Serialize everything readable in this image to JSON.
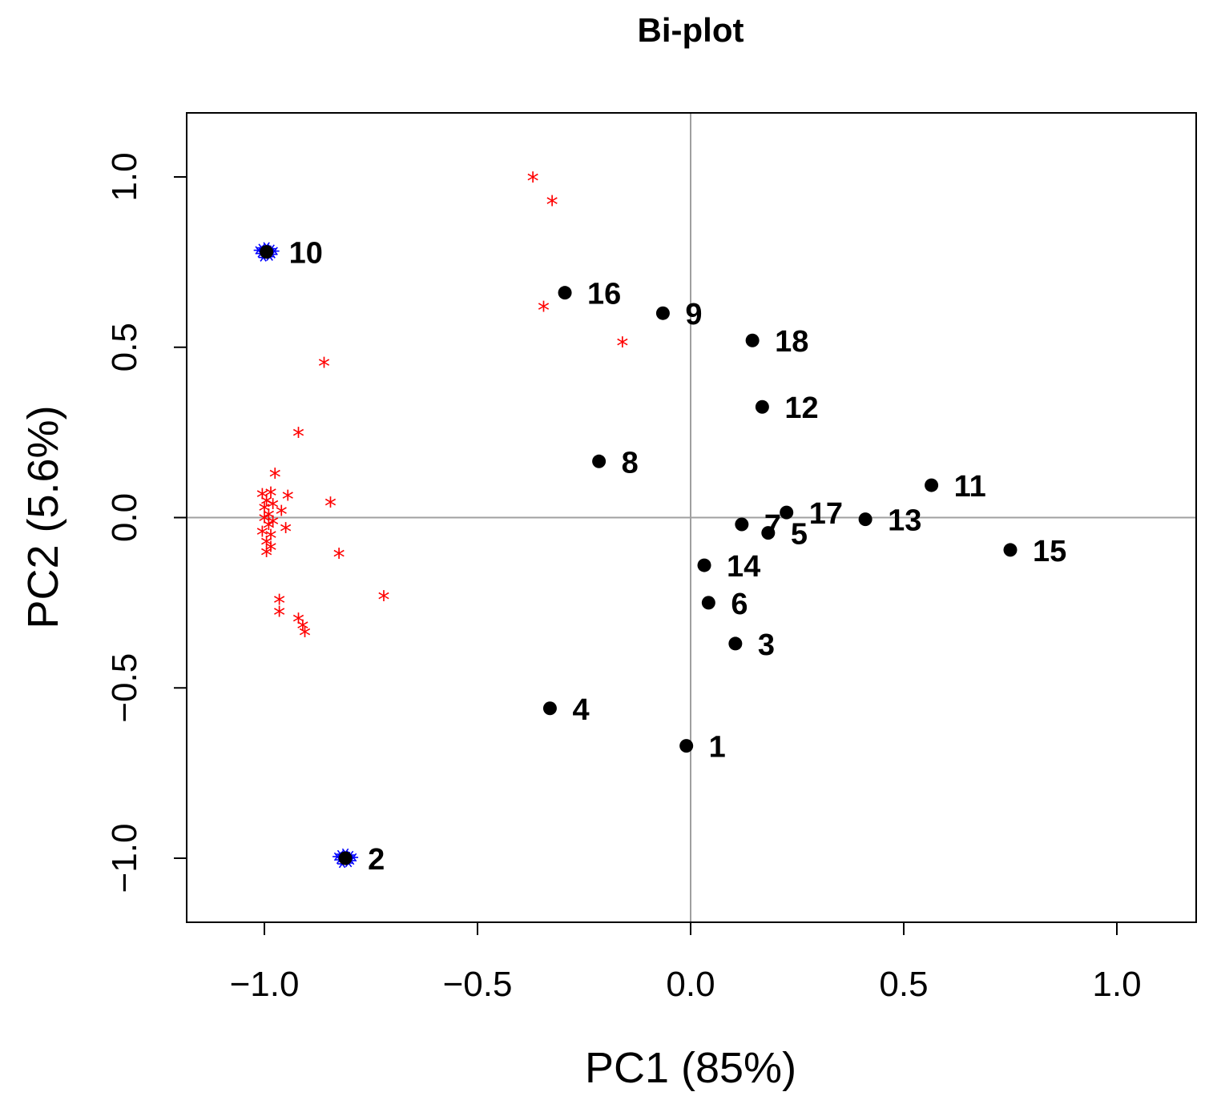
{
  "chart_data": {
    "type": "scatter",
    "title": "Bi-plot",
    "xlabel": "PC1 (85%)",
    "ylabel": "PC2 (5.6%)",
    "xlim": [
      -1.19,
      1.19
    ],
    "ylim": [
      -1.19,
      1.19
    ],
    "x_ticks": [
      -1.0,
      -0.5,
      0.0,
      0.5,
      1.0
    ],
    "x_tick_labels": [
      "−1.0",
      "−0.5",
      "0.0",
      "0.5",
      "1.0"
    ],
    "y_ticks": [
      -1.0,
      -0.5,
      0.0,
      0.5,
      1.0
    ],
    "y_tick_labels": [
      "−1.0",
      "−0.5",
      "0.0",
      "0.5",
      "1.0"
    ],
    "reference_lines": {
      "x": 0,
      "y": 0,
      "color": "#a0a0a0"
    },
    "colors": {
      "observations": "#000000",
      "variables": "#ff0000",
      "highlight": "#0000ff",
      "reference": "#a0a0a0"
    },
    "series": [
      {
        "name": "observations",
        "marker": "dot",
        "points": [
          {
            "label": "1",
            "x": -0.01,
            "y": -0.67
          },
          {
            "label": "2",
            "x": -0.81,
            "y": -1.0
          },
          {
            "label": "3",
            "x": 0.105,
            "y": -0.37
          },
          {
            "label": "4",
            "x": -0.33,
            "y": -0.56
          },
          {
            "label": "5",
            "x": 0.182,
            "y": -0.045
          },
          {
            "label": "6",
            "x": 0.042,
            "y": -0.25
          },
          {
            "label": "7",
            "x": 0.12,
            "y": -0.02
          },
          {
            "label": "8",
            "x": -0.215,
            "y": 0.165
          },
          {
            "label": "9",
            "x": -0.065,
            "y": 0.6
          },
          {
            "label": "10",
            "x": -0.995,
            "y": 0.78
          },
          {
            "label": "11",
            "x": 0.565,
            "y": 0.095
          },
          {
            "label": "12",
            "x": 0.168,
            "y": 0.325
          },
          {
            "label": "13",
            "x": 0.41,
            "y": -0.005
          },
          {
            "label": "14",
            "x": 0.032,
            "y": -0.14
          },
          {
            "label": "15",
            "x": 0.75,
            "y": -0.095
          },
          {
            "label": "16",
            "x": -0.295,
            "y": 0.66
          },
          {
            "label": "17",
            "x": 0.225,
            "y": 0.015
          },
          {
            "label": "18",
            "x": 0.145,
            "y": 0.52
          }
        ]
      },
      {
        "name": "variables",
        "marker": "star",
        "points": [
          {
            "x": -0.37,
            "y": 0.99
          },
          {
            "x": -0.325,
            "y": 0.92
          },
          {
            "x": -0.345,
            "y": 0.61
          },
          {
            "x": -0.16,
            "y": 0.505
          },
          {
            "x": -0.86,
            "y": 0.445
          },
          {
            "x": -0.92,
            "y": 0.24
          },
          {
            "x": -0.975,
            "y": 0.12
          },
          {
            "x": -0.945,
            "y": 0.055
          },
          {
            "x": -0.96,
            "y": 0.01
          },
          {
            "x": -0.95,
            "y": -0.04
          },
          {
            "x": -0.845,
            "y": 0.035
          },
          {
            "x": -0.825,
            "y": -0.115
          },
          {
            "x": -0.72,
            "y": -0.24
          },
          {
            "x": -0.965,
            "y": -0.25
          },
          {
            "x": -0.965,
            "y": -0.285
          },
          {
            "x": -0.92,
            "y": -0.305
          },
          {
            "x": -0.91,
            "y": -0.325
          },
          {
            "x": -0.905,
            "y": -0.345
          },
          {
            "x": -1.005,
            "y": 0.06
          },
          {
            "x": -0.985,
            "y": 0.065
          },
          {
            "x": -0.995,
            "y": 0.04
          },
          {
            "x": -1.0,
            "y": 0.02
          },
          {
            "x": -0.99,
            "y": 0.0
          },
          {
            "x": -1.0,
            "y": -0.01
          },
          {
            "x": -0.99,
            "y": -0.03
          },
          {
            "x": -1.005,
            "y": -0.05
          },
          {
            "x": -0.985,
            "y": -0.06
          },
          {
            "x": -0.995,
            "y": -0.08
          },
          {
            "x": -0.985,
            "y": -0.095
          },
          {
            "x": -0.995,
            "y": -0.11
          },
          {
            "x": -0.98,
            "y": 0.03
          },
          {
            "x": -0.98,
            "y": -0.02
          }
        ]
      },
      {
        "name": "highlight",
        "marker": "cluster",
        "points": [
          {
            "x": -0.995,
            "y": 0.78
          },
          {
            "x": -0.81,
            "y": -1.0
          }
        ]
      }
    ]
  }
}
